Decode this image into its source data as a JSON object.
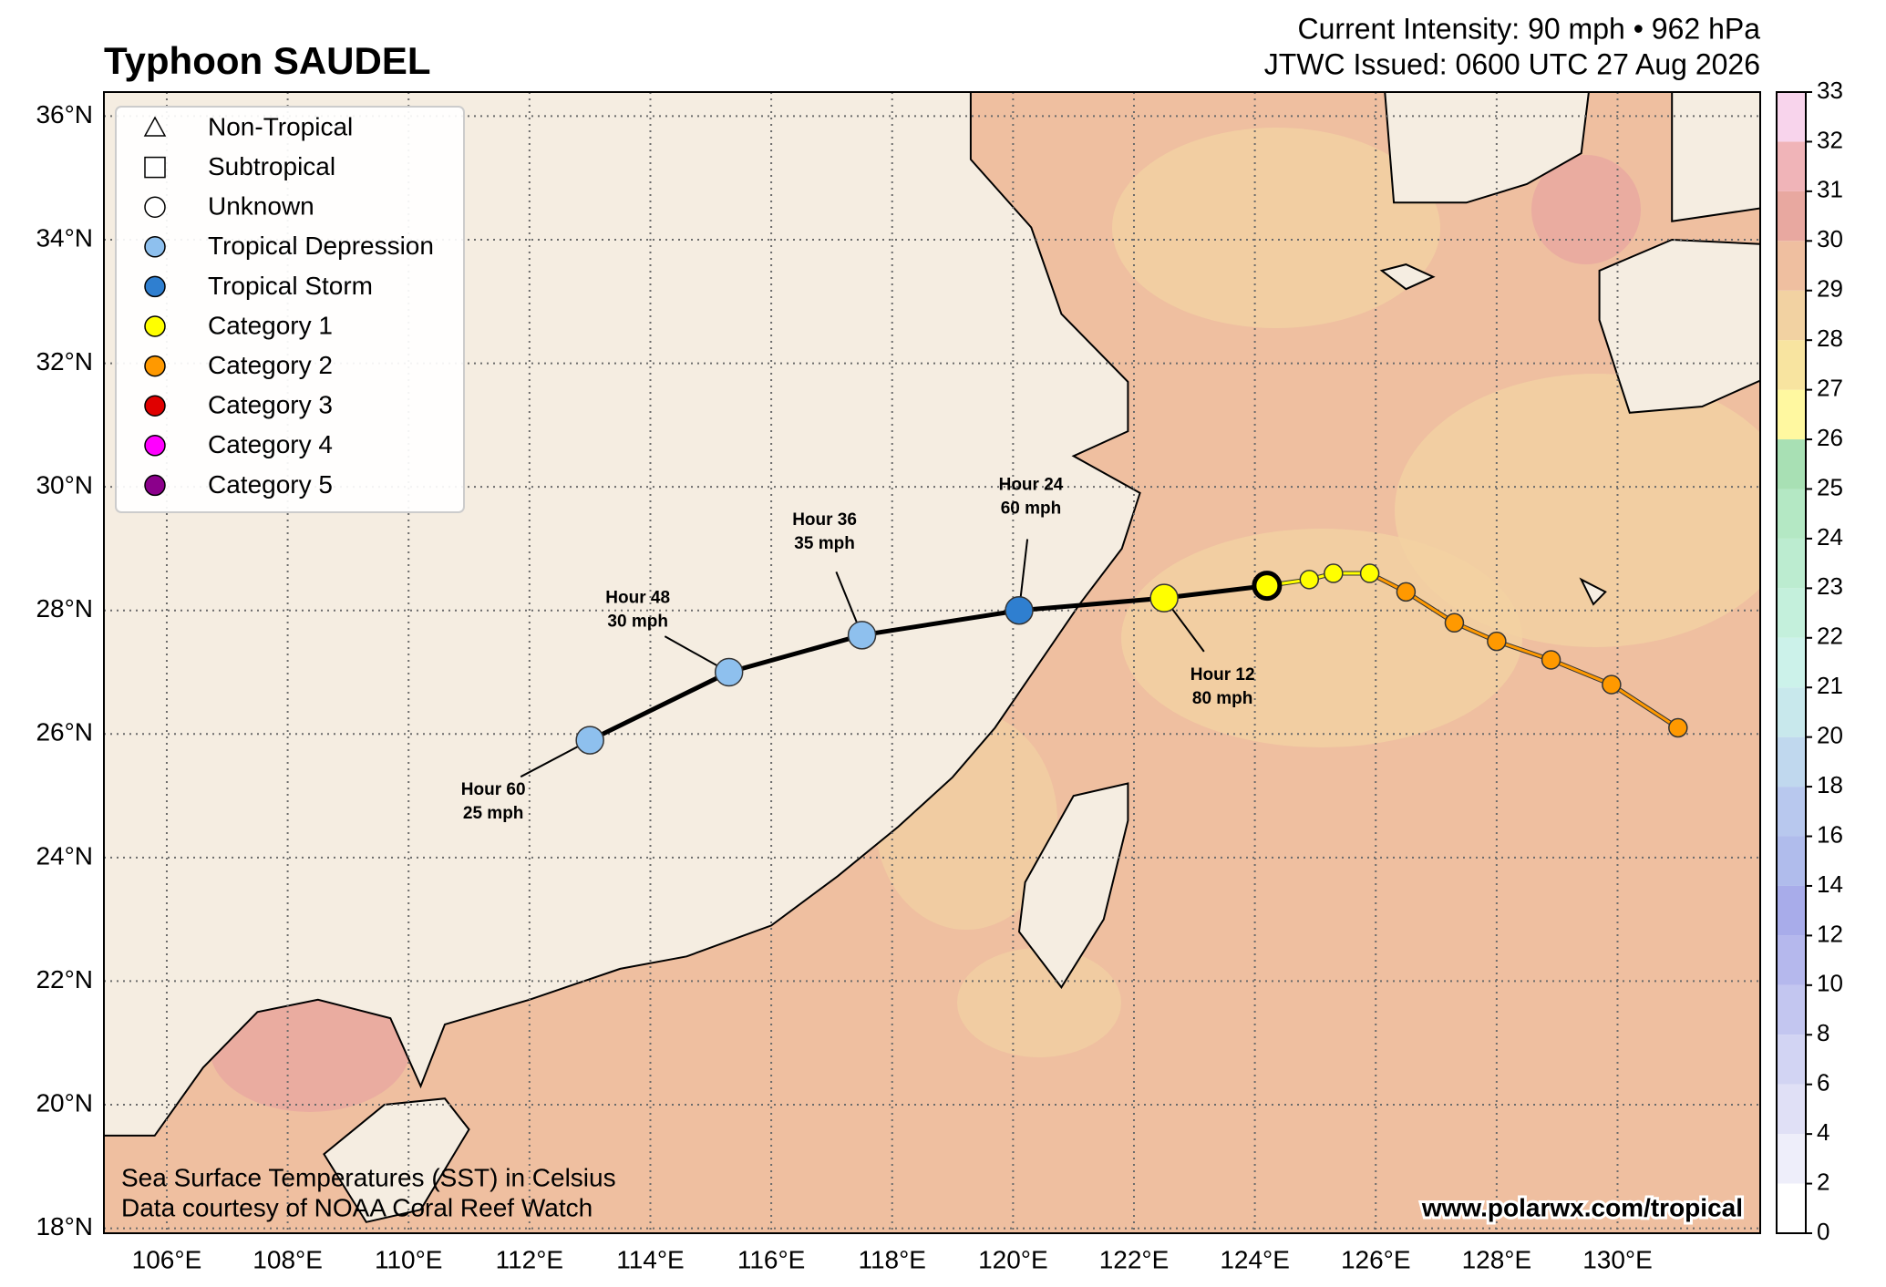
{
  "header": {
    "title": "Typhoon SAUDEL",
    "intensity": "Current Intensity: 90 mph • 962 hPa",
    "issued": "JTWC Issued: 0600 UTC 27 Aug 2026"
  },
  "legend": [
    {
      "label": "Non-Tropical",
      "shape": "triangle",
      "color": "#ffffff"
    },
    {
      "label": "Subtropical",
      "shape": "square",
      "color": "#ffffff"
    },
    {
      "label": "Unknown",
      "shape": "circle",
      "color": "#ffffff"
    },
    {
      "label": "Tropical Depression",
      "shape": "circle",
      "color": "#8ec0ee"
    },
    {
      "label": "Tropical Storm",
      "shape": "circle",
      "color": "#2f7fd0"
    },
    {
      "label": "Category 1",
      "shape": "circle",
      "color": "#ffff00"
    },
    {
      "label": "Category 2",
      "shape": "circle",
      "color": "#ff9900"
    },
    {
      "label": "Category 3",
      "shape": "circle",
      "color": "#e00000"
    },
    {
      "label": "Category 4",
      "shape": "circle",
      "color": "#ff00ff"
    },
    {
      "label": "Category 5",
      "shape": "circle",
      "color": "#8b008b"
    }
  ],
  "map": {
    "xlim": [
      104.96,
      132.36
    ],
    "ylim": [
      17.92,
      36.39
    ],
    "xticks": [
      {
        "value": 106,
        "label": "106°E"
      },
      {
        "value": 108,
        "label": "108°E"
      },
      {
        "value": 110,
        "label": "110°E"
      },
      {
        "value": 112,
        "label": "112°E"
      },
      {
        "value": 114,
        "label": "114°E"
      },
      {
        "value": 116,
        "label": "116°E"
      },
      {
        "value": 118,
        "label": "118°E"
      },
      {
        "value": 120,
        "label": "120°E"
      },
      {
        "value": 122,
        "label": "122°E"
      },
      {
        "value": 124,
        "label": "124°E"
      },
      {
        "value": 126,
        "label": "126°E"
      },
      {
        "value": 128,
        "label": "128°E"
      },
      {
        "value": 130,
        "label": "130°E"
      }
    ],
    "yticks": [
      {
        "value": 18,
        "label": "18°N"
      },
      {
        "value": 20,
        "label": "20°N"
      },
      {
        "value": 22,
        "label": "22°N"
      },
      {
        "value": 24,
        "label": "24°N"
      },
      {
        "value": 26,
        "label": "26°N"
      },
      {
        "value": 28,
        "label": "28°N"
      },
      {
        "value": 30,
        "label": "30°N"
      },
      {
        "value": 32,
        "label": "32°N"
      },
      {
        "value": 34,
        "label": "34°N"
      },
      {
        "value": 36,
        "label": "36°N"
      }
    ],
    "current": {
      "lon": 124.2,
      "lat": 28.4,
      "category": "Category 1"
    },
    "forecast": [
      {
        "lon": 122.5,
        "lat": 28.2,
        "category": "Category 1",
        "hour": "Hour 12",
        "wind": "80 mph"
      },
      {
        "lon": 120.1,
        "lat": 28.0,
        "category": "Tropical Storm",
        "hour": "Hour 24",
        "wind": "60 mph"
      },
      {
        "lon": 117.5,
        "lat": 27.6,
        "category": "Tropical Depression",
        "hour": "Hour 36",
        "wind": "35 mph"
      },
      {
        "lon": 115.3,
        "lat": 27.0,
        "category": "Tropical Depression",
        "hour": "Hour 48",
        "wind": "30 mph"
      },
      {
        "lon": 113.0,
        "lat": 25.9,
        "category": "Tropical Depression",
        "hour": "Hour 60",
        "wind": "25 mph"
      }
    ],
    "past": [
      {
        "lon": 124.9,
        "lat": 28.5,
        "category": "Category 1"
      },
      {
        "lon": 125.3,
        "lat": 28.6,
        "category": "Category 1"
      },
      {
        "lon": 125.9,
        "lat": 28.6,
        "category": "Category 1"
      },
      {
        "lon": 126.5,
        "lat": 28.3,
        "category": "Category 2"
      },
      {
        "lon": 127.3,
        "lat": 27.8,
        "category": "Category 2"
      },
      {
        "lon": 128.0,
        "lat": 27.5,
        "category": "Category 2"
      },
      {
        "lon": 128.9,
        "lat": 27.2,
        "category": "Category 2"
      },
      {
        "lon": 129.9,
        "lat": 26.8,
        "category": "Category 2"
      },
      {
        "lon": 131.0,
        "lat": 26.1,
        "category": "Category 2"
      }
    ]
  },
  "colorbar": {
    "ticks": [
      0,
      2,
      4,
      6,
      8,
      10,
      12,
      14,
      16,
      18,
      20,
      21,
      22,
      23,
      24,
      25,
      26,
      27,
      28,
      29,
      30,
      31,
      32,
      33
    ],
    "colors": [
      "#ffffff",
      "#eeeefa",
      "#e0e0f6",
      "#d2d4f3",
      "#c3c6f0",
      "#b5b8ed",
      "#a8acea",
      "#b0bcec",
      "#b8c8ee",
      "#c0d8ee",
      "#c8e8ec",
      "#ccf2ea",
      "#c4f0dc",
      "#bcecd0",
      "#b4e8c4",
      "#a8e0b4",
      "#fff8a0",
      "#f8e4a0",
      "#f2d2a2",
      "#efbfa0",
      "#e8a8a0",
      "#f0b4b8",
      "#f8d4ec"
    ]
  },
  "notes": [
    "Sea Surface Temperatures (SST) in Celsius",
    "Data courtesy of NOAA Coral Reef Watch"
  ],
  "credit": "www.polarwx.com/tropical"
}
